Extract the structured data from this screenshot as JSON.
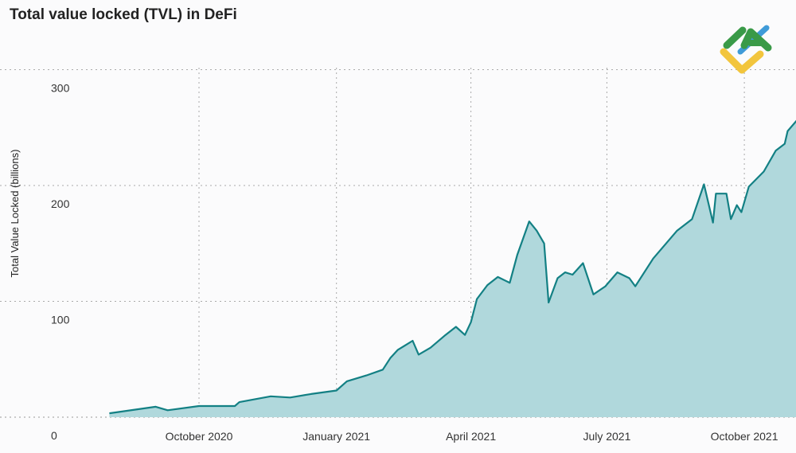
{
  "chart_data": {
    "type": "area",
    "title": "Total value locked (TVL) in DeFi",
    "xlabel": "",
    "ylabel": "Total Value Locked (billions)",
    "ylim": [
      0,
      300
    ],
    "yticks": [
      0,
      100,
      200,
      300
    ],
    "xticks": [
      {
        "date": "2020-10-01",
        "label": "October 2020"
      },
      {
        "date": "2021-01-01",
        "label": "January 2021"
      },
      {
        "date": "2021-04-01",
        "label": "April 2021"
      },
      {
        "date": "2021-07-01",
        "label": "July 2021"
      },
      {
        "date": "2021-10-01",
        "label": "October 2021"
      }
    ],
    "xlim": [
      "2020-08-02",
      "2021-11-05"
    ],
    "grid": true,
    "colors": {
      "line": "#138084",
      "fill": "#b0d8dc"
    },
    "series": [
      {
        "points": [
          [
            "2020-08-02",
            3.4
          ],
          [
            "2020-09-02",
            9
          ],
          [
            "2020-09-10",
            6
          ],
          [
            "2020-10-01",
            9.6
          ],
          [
            "2020-10-25",
            9.6
          ],
          [
            "2020-10-28",
            13
          ],
          [
            "2020-11-18",
            18
          ],
          [
            "2020-12-01",
            17
          ],
          [
            "2020-12-15",
            20
          ],
          [
            "2021-01-01",
            23
          ],
          [
            "2021-01-08",
            31
          ],
          [
            "2021-01-21",
            36
          ],
          [
            "2021-02-01",
            41
          ],
          [
            "2021-02-06",
            51
          ],
          [
            "2021-02-11",
            58
          ],
          [
            "2021-02-21",
            66
          ],
          [
            "2021-02-25",
            54
          ],
          [
            "2021-03-05",
            60
          ],
          [
            "2021-03-15",
            71
          ],
          [
            "2021-03-22",
            78
          ],
          [
            "2021-03-28",
            71
          ],
          [
            "2021-04-01",
            82
          ],
          [
            "2021-04-05",
            102
          ],
          [
            "2021-04-12",
            114
          ],
          [
            "2021-04-19",
            121
          ],
          [
            "2021-04-27",
            116
          ],
          [
            "2021-05-02",
            140
          ],
          [
            "2021-05-10",
            169
          ],
          [
            "2021-05-15",
            161
          ],
          [
            "2021-05-20",
            150
          ],
          [
            "2021-05-23",
            99
          ],
          [
            "2021-05-29",
            120
          ],
          [
            "2021-06-03",
            125
          ],
          [
            "2021-06-08",
            123
          ],
          [
            "2021-06-15",
            133
          ],
          [
            "2021-06-22",
            106
          ],
          [
            "2021-06-30",
            113
          ],
          [
            "2021-07-08",
            125
          ],
          [
            "2021-07-16",
            120
          ],
          [
            "2021-07-20",
            113
          ],
          [
            "2021-08-01",
            137
          ],
          [
            "2021-08-17",
            161
          ],
          [
            "2021-08-27",
            171
          ],
          [
            "2021-09-04",
            201
          ],
          [
            "2021-09-10",
            168
          ],
          [
            "2021-09-12",
            193
          ],
          [
            "2021-09-19",
            193
          ],
          [
            "2021-09-22",
            171
          ],
          [
            "2021-09-26",
            183
          ],
          [
            "2021-09-29",
            177
          ],
          [
            "2021-10-04",
            199
          ],
          [
            "2021-10-14",
            212
          ],
          [
            "2021-10-22",
            230
          ],
          [
            "2021-10-28",
            236
          ],
          [
            "2021-10-30",
            247
          ],
          [
            "2021-11-05",
            256
          ]
        ]
      }
    ]
  }
}
